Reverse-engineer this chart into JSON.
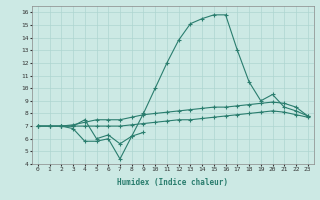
{
  "xlabel": "Humidex (Indice chaleur)",
  "x": [
    0,
    1,
    2,
    3,
    4,
    5,
    6,
    7,
    8,
    9,
    10,
    11,
    12,
    13,
    14,
    15,
    16,
    17,
    18,
    19,
    20,
    21,
    22,
    23
  ],
  "line_main": [
    7,
    7,
    7,
    7,
    7.5,
    6.0,
    6.3,
    5.6,
    6.2,
    8.0,
    10.0,
    12.0,
    13.8,
    15.1,
    15.5,
    15.8,
    15.8,
    13.0,
    10.5,
    9.0,
    9.5,
    8.5,
    8.2,
    7.8
  ],
  "line_mid": [
    7,
    7,
    7,
    7.1,
    7.3,
    7.5,
    7.5,
    7.5,
    7.7,
    7.9,
    8.0,
    8.1,
    8.2,
    8.3,
    8.4,
    8.5,
    8.5,
    8.6,
    8.7,
    8.8,
    8.9,
    8.8,
    8.5,
    7.8
  ],
  "line_bot": [
    7,
    7,
    7,
    7,
    7,
    7,
    7,
    7,
    7.1,
    7.2,
    7.3,
    7.4,
    7.5,
    7.5,
    7.6,
    7.7,
    7.8,
    7.9,
    8.0,
    8.1,
    8.2,
    8.1,
    7.9,
    7.7
  ],
  "line_dip_x": [
    2,
    3,
    4,
    5,
    6,
    7,
    8,
    9
  ],
  "line_dip_y": [
    7.0,
    6.8,
    5.8,
    5.8,
    6.0,
    4.4,
    6.2,
    6.5
  ],
  "color": "#2a7d6e",
  "bg_color": "#cce9e4",
  "grid_color": "#aed6d0",
  "ylim": [
    4,
    16.5
  ],
  "xlim": [
    -0.5,
    23.5
  ],
  "yticks": [
    4,
    5,
    6,
    7,
    8,
    9,
    10,
    11,
    12,
    13,
    14,
    15,
    16
  ],
  "xticks": [
    0,
    1,
    2,
    3,
    4,
    5,
    6,
    7,
    8,
    9,
    10,
    11,
    12,
    13,
    14,
    15,
    16,
    17,
    18,
    19,
    20,
    21,
    22,
    23
  ]
}
